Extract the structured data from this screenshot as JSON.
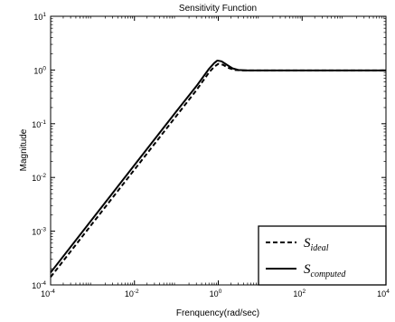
{
  "chart_data": {
    "type": "line",
    "title": "Sensitivity Function",
    "xlabel": "Frenquency(rad/sec)",
    "ylabel": "Magnitude",
    "xscale": "log",
    "yscale": "log",
    "xlim": [
      0.0001,
      10000
    ],
    "ylim": [
      0.0001,
      10
    ],
    "grid": false,
    "legend_position": "bottom-right",
    "x_ticks": [
      {
        "base": "10",
        "exp": "-4"
      },
      {
        "base": "10",
        "exp": "-2"
      },
      {
        "base": "10",
        "exp": "0"
      },
      {
        "base": "10",
        "exp": "2"
      },
      {
        "base": "10",
        "exp": "4"
      }
    ],
    "y_ticks": [
      {
        "base": "10",
        "exp": "-4"
      },
      {
        "base": "10",
        "exp": "-3"
      },
      {
        "base": "10",
        "exp": "-2"
      },
      {
        "base": "10",
        "exp": "-1"
      },
      {
        "base": "10",
        "exp": "0"
      },
      {
        "base": "10",
        "exp": "1"
      }
    ],
    "series": [
      {
        "name": "S_ideal",
        "legend": {
          "main": "S",
          "sub": "ideal"
        },
        "style": "dashed",
        "color": "#000000",
        "x": [
          0.0001,
          0.001,
          0.01,
          0.1,
          0.3,
          0.6,
          0.8,
          1.0,
          1.3,
          1.7,
          2.5,
          4,
          10,
          100,
          1000,
          10000
        ],
        "y": [
          0.00014,
          0.0014,
          0.014,
          0.14,
          0.42,
          0.9,
          1.15,
          1.3,
          1.25,
          1.1,
          1.0,
          0.98,
          0.98,
          0.98,
          0.98,
          0.98
        ]
      },
      {
        "name": "S_computed",
        "legend": {
          "main": "S",
          "sub": "computed"
        },
        "style": "solid",
        "color": "#000000",
        "x": [
          0.0001,
          0.001,
          0.01,
          0.1,
          0.3,
          0.6,
          0.8,
          0.95,
          1.2,
          1.6,
          2.2,
          3,
          5,
          10,
          100,
          1000,
          10000
        ],
        "y": [
          0.00017,
          0.0017,
          0.017,
          0.17,
          0.5,
          1.05,
          1.35,
          1.5,
          1.45,
          1.25,
          1.07,
          1.0,
          0.98,
          0.98,
          0.98,
          0.98,
          0.98
        ]
      }
    ]
  }
}
